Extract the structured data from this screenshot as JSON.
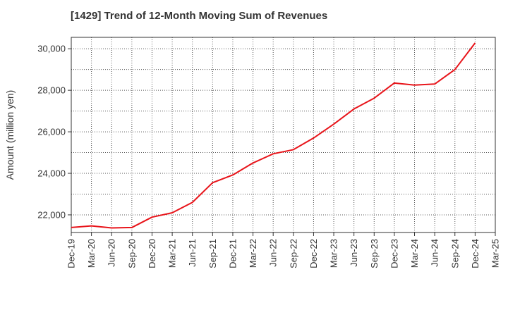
{
  "chart_data": {
    "type": "line",
    "title": "[1429]  Trend of 12-Month Moving Sum of Revenues",
    "xlabel": "",
    "ylabel": "Amount (million yen)",
    "ylim": [
      21150,
      30550
    ],
    "yticks": [
      22000,
      24000,
      26000,
      28000,
      30000
    ],
    "ytick_labels": [
      "22,000",
      "24,000",
      "26,000",
      "28,000",
      "30,000"
    ],
    "categories": [
      "Dec-19",
      "Mar-20",
      "Jun-20",
      "Sep-20",
      "Dec-20",
      "Mar-21",
      "Jun-21",
      "Sep-21",
      "Dec-21",
      "Mar-22",
      "Jun-22",
      "Sep-22",
      "Dec-22",
      "Mar-23",
      "Jun-23",
      "Sep-23",
      "Dec-23",
      "Mar-24",
      "Jun-24",
      "Sep-24",
      "Dec-24",
      "Mar-25"
    ],
    "series": [
      {
        "name": "12-Month Moving Sum of Revenues",
        "color": "#e8141a",
        "values": [
          21390,
          21470,
          21370,
          21390,
          21890,
          22100,
          22600,
          23550,
          23920,
          24500,
          24940,
          25140,
          25700,
          26370,
          27100,
          27620,
          28350,
          28250,
          28300,
          29000,
          30280,
          null
        ]
      }
    ],
    "grid": true
  }
}
